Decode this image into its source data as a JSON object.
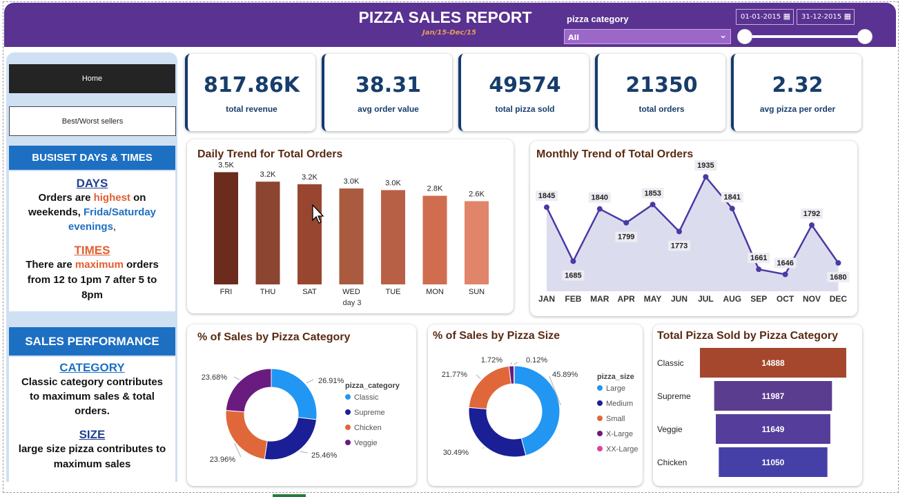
{
  "header": {
    "title": "PIZZA SALES REPORT",
    "subtitle": "Jan/15-Dec/15",
    "category_label": "pizza category",
    "category_value": "All",
    "date_from": "01-01-2015",
    "date_to": "31-12-2015"
  },
  "nav": {
    "home": "Home",
    "best_worst": "Best/Worst sellers"
  },
  "busiest": {
    "heading": "BUSISET DAYS & TIMES",
    "days_title": "DAYS",
    "days_t1": "Orders are ",
    "days_hl1": "highest",
    "days_t2": " on weekends, ",
    "days_hl2": "Frida/Saturday evenings",
    "days_t3": ",",
    "times_title": "TIMES",
    "times_t1": "There are ",
    "times_hl": "maximum",
    "times_t2": " orders from 12 to 1pm 7 after 5 to 8pm"
  },
  "performance": {
    "heading": "SALES PERFORMANCE",
    "category_title": "CATEGORY",
    "category_text": "Classic category contributes to maximum sales & total orders.",
    "size_title": "SIZE",
    "size_text": "large size pizza contributes to maximum sales"
  },
  "kpis": [
    {
      "value": "817.86K",
      "label": "total revenue"
    },
    {
      "value": "38.31",
      "label": "avg order value"
    },
    {
      "value": "49574",
      "label": "total pizza sold"
    },
    {
      "value": "21350",
      "label": "total orders"
    },
    {
      "value": "2.32",
      "label": "avg pizza per order"
    }
  ],
  "colors": {
    "header": "#5a3291",
    "sidebar": "#cfe0f3",
    "section_head": "#1d6fc2",
    "kpi_text": "#173d6b",
    "area_line": "#4a3aa3",
    "area_fill": "#dcdcef"
  },
  "chart_data": [
    {
      "type": "bar",
      "title": "Daily Trend for Total Orders",
      "xlabel": "day 3",
      "categories": [
        "FRI",
        "THU",
        "SAT",
        "WED",
        "TUE",
        "MON",
        "SUN"
      ],
      "values": [
        3538,
        3239,
        3158,
        3024,
        2973,
        2794,
        2624
      ],
      "labels": [
        "3.5K",
        "3.2K",
        "3.2K",
        "3.0K",
        "3.0K",
        "2.8K",
        "2.6K"
      ],
      "colors": [
        "#6b2b1d",
        "#8b4530",
        "#98462f",
        "#a95a3f",
        "#b86046",
        "#d06d4f",
        "#e0856a"
      ],
      "ylim": [
        0,
        3700
      ]
    },
    {
      "type": "area",
      "title": "Monthly Trend of Total Orders",
      "categories": [
        "JAN",
        "FEB",
        "MAR",
        "APR",
        "MAY",
        "JUN",
        "JUL",
        "AUG",
        "SEP",
        "OCT",
        "NOV",
        "DEC"
      ],
      "values": [
        1845,
        1685,
        1840,
        1799,
        1853,
        1773,
        1935,
        1841,
        1661,
        1646,
        1792,
        1680
      ],
      "ylim": [
        1600,
        1960
      ]
    },
    {
      "type": "pie",
      "title": "% of Sales by Pizza Category",
      "legend_title": "pizza_category",
      "categories": [
        "Classic",
        "Supreme",
        "Chicken",
        "Veggie"
      ],
      "values": [
        26.91,
        25.46,
        23.96,
        23.68
      ],
      "labels": [
        "26.91%",
        "25.46%",
        "23.96%",
        "23.68%"
      ],
      "colors": [
        "#2196f3",
        "#1a1f96",
        "#e0673a",
        "#6a1b80"
      ]
    },
    {
      "type": "pie",
      "title": "% of Sales by Pizza Size",
      "legend_title": "pizza_size",
      "categories": [
        "Large",
        "Medium",
        "Small",
        "X-Large",
        "XX-Large"
      ],
      "values": [
        45.89,
        30.49,
        21.77,
        1.72,
        0.12
      ],
      "labels": [
        "45.89%",
        "30.49%",
        "21.77%",
        "1.72%",
        "0.12%"
      ],
      "colors": [
        "#2196f3",
        "#1a1f96",
        "#e0673a",
        "#6a1b80",
        "#e040a0"
      ]
    },
    {
      "type": "bar",
      "orientation": "horizontal",
      "title": "Total Pizza Sold by Pizza Category",
      "categories": [
        "Classic",
        "Supreme",
        "Veggie",
        "Chicken"
      ],
      "values": [
        14888,
        11987,
        11649,
        11050
      ],
      "labels": [
        "14888",
        "11987",
        "11649",
        "11050"
      ],
      "colors": [
        "#a5472c",
        "#5a3d8f",
        "#553d9b",
        "#4540a8"
      ]
    }
  ]
}
